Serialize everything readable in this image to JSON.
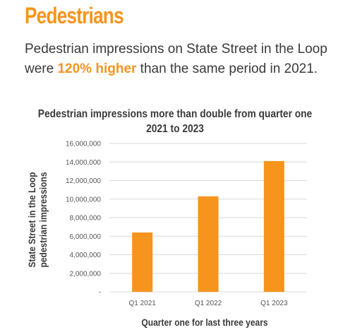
{
  "page": {
    "heading": "Pedestrians",
    "intro_before": "Pedestrian impressions on State Street in the Loop were ",
    "intro_highlight": "120% higher",
    "intro_after": " than the same period in 2021."
  },
  "colors": {
    "accent": "#f7941d",
    "bar": "#f7941d",
    "grid": "#d9d9d9",
    "text": "#3a3a3a"
  },
  "chart_data": {
    "type": "bar",
    "title": "Pedestrian impressions more than double from quarter one 2021 to 2023",
    "xlabel": "Quarter one for last three years",
    "ylabel": "State Street in the Loop pedestrian impressions",
    "ylabel_lines": [
      "State Street in the Loop",
      "pedestrian impressions"
    ],
    "categories": [
      "Q1 2021",
      "Q1 2022",
      "Q1 2023"
    ],
    "values": [
      6400000,
      10300000,
      14100000
    ],
    "ylim": [
      0,
      16000000
    ],
    "yticks": [
      0,
      2000000,
      4000000,
      6000000,
      8000000,
      10000000,
      12000000,
      14000000,
      16000000
    ],
    "ytick_labels": [
      "-",
      "2,000,000",
      "4,000,000",
      "6,000,000",
      "8,000,000",
      "10,000,000",
      "12,000,000",
      "14,000,000",
      "16,000,000"
    ],
    "grid": true,
    "legend": "none"
  }
}
